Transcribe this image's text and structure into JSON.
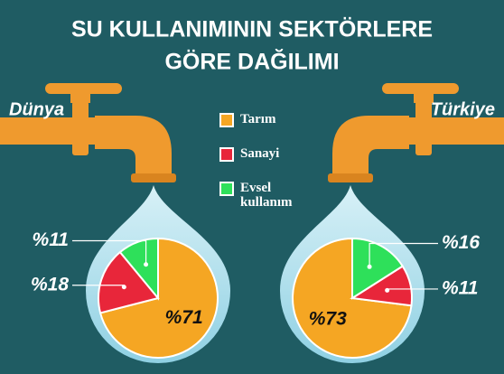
{
  "chart_data": {
    "type": "pie",
    "title": [
      "SU KULLANIMININ SEKTÖRLERE",
      "GÖRE DAĞILIMI"
    ],
    "categories": [
      "Tarım",
      "Sanayi",
      "Evsel kullanım"
    ],
    "colors": [
      "#f5a623",
      "#e8263a",
      "#2ee05a"
    ],
    "series": [
      {
        "name": "Dünya",
        "values": [
          71,
          18,
          11
        ],
        "value_labels": [
          "%71",
          "%18",
          "%11"
        ],
        "direction": "clockwise"
      },
      {
        "name": "Türkiye",
        "values": [
          73,
          11,
          16
        ],
        "value_labels": [
          "%73",
          "%11",
          "%16"
        ],
        "direction": "counterclockwise"
      }
    ]
  }
}
